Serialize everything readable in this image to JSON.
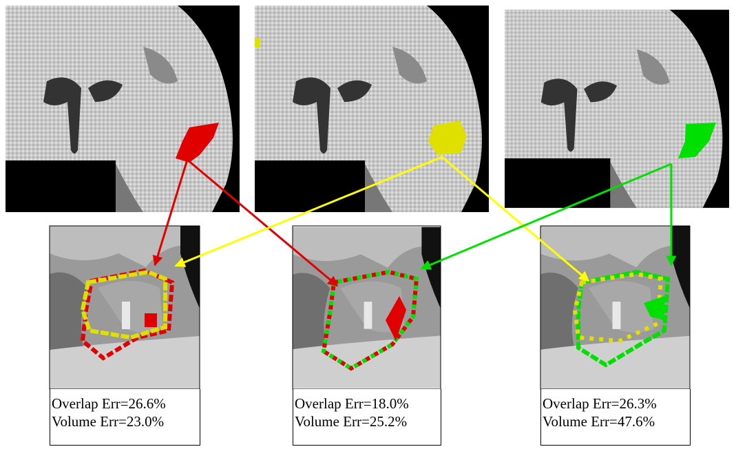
{
  "panels": [
    {
      "overlap_error": "Overlap Err=26.6%",
      "volume_error": "Volume Err=23.0%"
    },
    {
      "overlap_error": "Overlap Err=18.0%",
      "volume_error": "Volume Err=25.2%"
    },
    {
      "overlap_error": "Overlap Err=26.3%",
      "volume_error": "Volume Err=47.6%"
    }
  ]
}
